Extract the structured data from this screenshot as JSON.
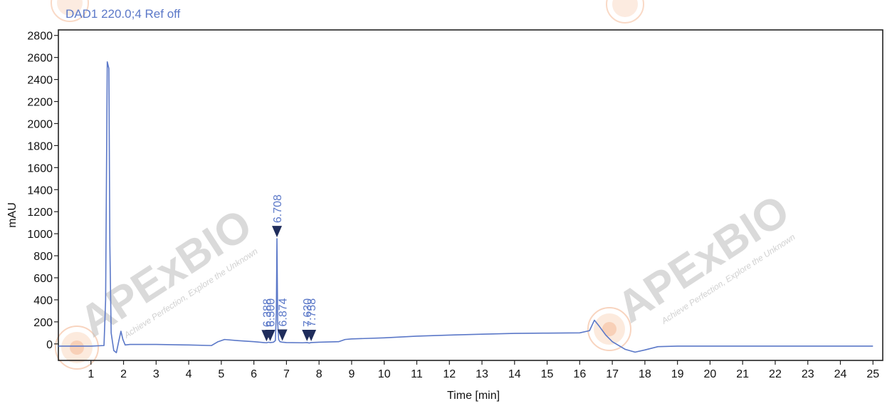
{
  "signal_label": "DAD1 220.0;4 Ref off",
  "watermark": {
    "brand": "APExBIO",
    "tagline": "Achieve Perfection, Explore the Unknown"
  },
  "colors": {
    "trace": "#5b78c8",
    "axis": "#222222",
    "text": "#111111",
    "watermark_orange": "#f0a070",
    "watermark_gray": "#bdbdbd"
  },
  "chart_data": {
    "type": "line",
    "title": "DAD1 220.0;4 Ref off",
    "xlabel": "Time [min]",
    "ylabel": "mAU",
    "xlim": [
      0,
      25.3
    ],
    "ylim": [
      -150,
      2850
    ],
    "x_ticks": [
      1,
      2,
      3,
      4,
      5,
      6,
      7,
      8,
      9,
      10,
      11,
      12,
      13,
      14,
      15,
      16,
      17,
      18,
      19,
      20,
      21,
      22,
      23,
      24,
      25
    ],
    "y_ticks": [
      0,
      200,
      400,
      600,
      800,
      1000,
      1200,
      1400,
      1600,
      1800,
      2000,
      2200,
      2400,
      2600,
      2800
    ],
    "grid": false,
    "series": [
      {
        "x": [
          0,
          1.0,
          1.4,
          1.45,
          1.5,
          1.55,
          1.58,
          1.62,
          1.7,
          1.78,
          1.85,
          1.92,
          1.98,
          2.05,
          2.2,
          3.0,
          4.0,
          4.7,
          4.9,
          5.1,
          5.5,
          6.0,
          6.3,
          6.388,
          6.45,
          6.5,
          6.6,
          6.66,
          6.69,
          6.708,
          6.73,
          6.76,
          6.8,
          6.874,
          7.0,
          7.5,
          7.63,
          7.7,
          7.758,
          8.0,
          8.6,
          8.8,
          9.0,
          10.0,
          11.0,
          12.0,
          13.0,
          14.0,
          15.0,
          16.0,
          16.3,
          16.45,
          16.6,
          16.8,
          17.0,
          17.4,
          17.7,
          18.0,
          18.4,
          19.0,
          20.0,
          22.0,
          25.0
        ],
        "y": [
          -20,
          -20,
          -15,
          400,
          2560,
          2500,
          900,
          100,
          -60,
          -80,
          20,
          115,
          40,
          -10,
          -5,
          -5,
          -10,
          -15,
          20,
          40,
          30,
          20,
          12,
          10,
          15,
          12,
          15,
          30,
          300,
          955,
          200,
          40,
          20,
          15,
          12,
          10,
          12,
          8,
          12,
          15,
          20,
          40,
          45,
          55,
          70,
          80,
          88,
          95,
          98,
          100,
          120,
          215,
          160,
          80,
          20,
          -50,
          -75,
          -55,
          -25,
          -20,
          -20,
          -20,
          -20
        ]
      }
    ],
    "peaks": [
      {
        "time": 6.388,
        "label": "6.388"
      },
      {
        "time": 6.5,
        "label": "6.500"
      },
      {
        "time": 6.708,
        "label": "6.708"
      },
      {
        "time": 6.874,
        "label": "6.874"
      },
      {
        "time": 7.63,
        "label": "7.630"
      },
      {
        "time": 7.758,
        "label": "7.758"
      }
    ]
  }
}
